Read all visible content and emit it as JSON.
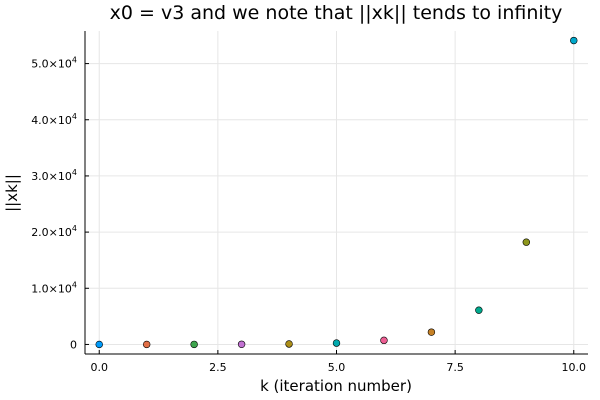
{
  "chart_data": {
    "type": "scatter",
    "title": "x0 = v3 and we note that ||xk|| tends to infinity",
    "xlabel": "k (iteration number)",
    "ylabel": "||xk||",
    "xlim": [
      -0.3,
      10.3
    ],
    "ylim": [
      -1700,
      55800
    ],
    "grid": true,
    "legend": "none",
    "x_ticks": [
      {
        "value": 0,
        "label": "0.0"
      },
      {
        "value": 2.5,
        "label": "2.5"
      },
      {
        "value": 5,
        "label": "5.0"
      },
      {
        "value": 7.5,
        "label": "7.5"
      },
      {
        "value": 10,
        "label": "10.0"
      }
    ],
    "y_ticks": [
      {
        "value": 0,
        "mantissa": "0",
        "exponent": ""
      },
      {
        "value": 10000,
        "mantissa": "1.0×10",
        "exponent": "4"
      },
      {
        "value": 20000,
        "mantissa": "2.0×10",
        "exponent": "4"
      },
      {
        "value": 30000,
        "mantissa": "3.0×10",
        "exponent": "4"
      },
      {
        "value": 40000,
        "mantissa": "4.0×10",
        "exponent": "4"
      },
      {
        "value": 50000,
        "mantissa": "5.0×10",
        "exponent": "4"
      }
    ],
    "points": [
      {
        "x": 0,
        "y": 1,
        "color": "#009af9"
      },
      {
        "x": 1,
        "y": 3,
        "color": "#e26f46"
      },
      {
        "x": 2,
        "y": 9,
        "color": "#3da44d"
      },
      {
        "x": 3,
        "y": 27,
        "color": "#c271d2"
      },
      {
        "x": 4,
        "y": 81,
        "color": "#ac8e18"
      },
      {
        "x": 5,
        "y": 243,
        "color": "#00a9ad"
      },
      {
        "x": 6,
        "y": 729,
        "color": "#ed5e93"
      },
      {
        "x": 7,
        "y": 2187,
        "color": "#c68125"
      },
      {
        "x": 8,
        "y": 6100,
        "color": "#00a98d"
      },
      {
        "x": 9,
        "y": 18200,
        "color": "#8e971d"
      },
      {
        "x": 10,
        "y": 54100,
        "color": "#00a8cb"
      }
    ]
  }
}
